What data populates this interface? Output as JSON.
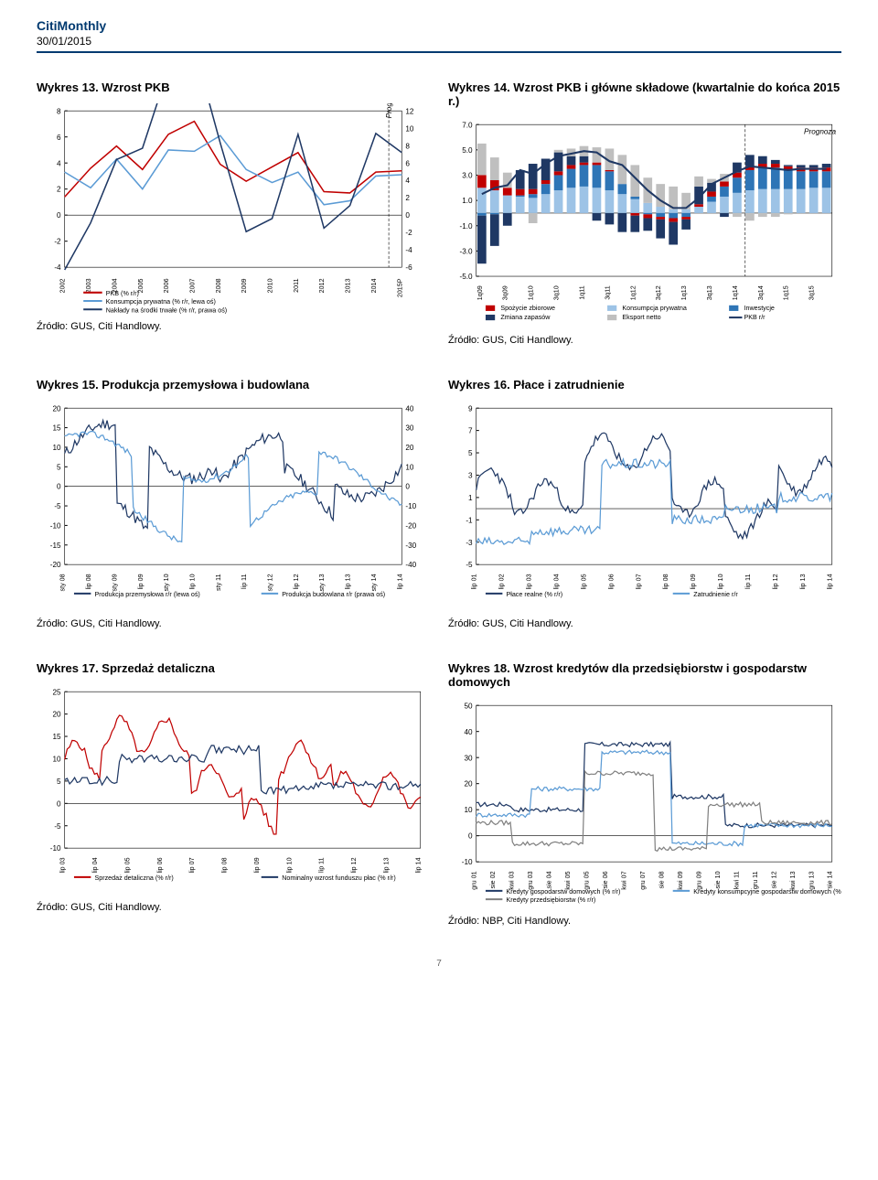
{
  "header": {
    "title": "CitiMonthly",
    "date": "30/01/2015"
  },
  "page_number": "7",
  "colors": {
    "citi_blue": "#003a70",
    "red": "#c00000",
    "navy": "#1f3864",
    "lightblue": "#9dc3e6",
    "skyblue": "#5b9bd5",
    "midblue": "#2e75b6",
    "grey": "#808080",
    "lightgrey": "#bfbfbf",
    "grid": "#cccccc"
  },
  "chart13": {
    "title": "Wykres 13. Wzrost PKB",
    "type": "line-dual-axis",
    "x_labels": [
      "2002",
      "2003",
      "2004",
      "2005",
      "2006",
      "2007",
      "2008",
      "2009",
      "2010",
      "2011",
      "2012",
      "2013",
      "2014",
      "2015P"
    ],
    "prognoza_label": "Prognoza",
    "left_ylim": [
      -4,
      8
    ],
    "left_ticks": [
      -4,
      -2,
      0,
      2,
      4,
      6,
      8
    ],
    "right_ylim": [
      -6,
      12
    ],
    "right_ticks": [
      -6,
      -4,
      -2,
      0,
      2,
      4,
      6,
      8,
      10,
      12
    ],
    "series": {
      "pkb": {
        "label": "PKB (% r/r)",
        "color": "#c00000",
        "values": [
          1.4,
          3.6,
          5.3,
          3.5,
          6.2,
          7.2,
          3.9,
          2.6,
          3.7,
          4.8,
          1.8,
          1.7,
          3.3,
          3.4
        ]
      },
      "kons": {
        "label": "Konsumpcja prywatna (% r/r, lewa oś)",
        "color": "#5b9bd5",
        "values": [
          3.3,
          2.1,
          4.3,
          2.0,
          5.0,
          4.9,
          6.1,
          3.5,
          2.5,
          3.3,
          0.8,
          1.1,
          3.0,
          3.1
        ]
      },
      "nak": {
        "label": "Nakłady na środki trwałe (% r/r, prawa oś)",
        "color": "#1f3864",
        "values": [
          -6.3,
          -0.9,
          6.4,
          7.7,
          16.8,
          19.2,
          8.3,
          -1.9,
          -0.4,
          9.3,
          -1.5,
          1.1,
          9.4,
          7.2
        ]
      }
    },
    "source": "Źródło: GUS, Citi Handlowy."
  },
  "chart14": {
    "title": "Wykres 14. Wzrost PKB i główne składowe (kwartalnie do końca 2015 r.)",
    "type": "stacked-bar-line",
    "prognoza_label": "Prognoza",
    "x_labels": [
      "1q09",
      "3q09",
      "1q10",
      "3q10",
      "1q11",
      "3q11",
      "1q12",
      "3q12",
      "1q13",
      "3q13",
      "1q14",
      "3q14",
      "1q15",
      "3q15"
    ],
    "ylim": [
      -5,
      7
    ],
    "yticks": [
      -5,
      -3,
      -1,
      1,
      3,
      5,
      7
    ],
    "series": {
      "spozycie": {
        "label": "Spożycie zbiorowe",
        "color": "#c00000"
      },
      "zmiana": {
        "label": "Zmiana zapasów",
        "color": "#1f3864"
      },
      "kons": {
        "label": "Konsumpcja prywatna",
        "color": "#9dc3e6"
      },
      "eksport": {
        "label": "Eksport netto",
        "color": "#bfbfbf"
      },
      "inwest": {
        "label": "Inwestycje",
        "color": "#2e75b6"
      },
      "pkb": {
        "label": "PKB r/r",
        "color": "#1f3864"
      }
    },
    "bars": [
      {
        "sp": 1.0,
        "zm": -3.8,
        "ko": 2.0,
        "ek": 2.5,
        "in": -0.2
      },
      {
        "sp": 0.8,
        "zm": -2.5,
        "ko": 1.8,
        "ek": 1.8,
        "in": -0.1
      },
      {
        "sp": 0.6,
        "zm": -1.0,
        "ko": 1.4,
        "ek": 1.2,
        "in": 0.0
      },
      {
        "sp": 0.5,
        "zm": 1.5,
        "ko": 1.3,
        "ek": 0.0,
        "in": 0.1
      },
      {
        "sp": 0.4,
        "zm": 2.0,
        "ko": 1.2,
        "ek": -0.8,
        "in": 0.3
      },
      {
        "sp": 0.3,
        "zm": 1.7,
        "ko": 1.5,
        "ek": 0.0,
        "in": 0.8
      },
      {
        "sp": 0.3,
        "zm": 1.5,
        "ko": 1.8,
        "ek": 0.2,
        "in": 1.2
      },
      {
        "sp": 0.3,
        "zm": 0.7,
        "ko": 2.0,
        "ek": 0.6,
        "in": 1.5
      },
      {
        "sp": 0.2,
        "zm": 0.5,
        "ko": 2.1,
        "ek": 0.8,
        "in": 1.7
      },
      {
        "sp": 0.2,
        "zm": -0.6,
        "ko": 2.0,
        "ek": 1.2,
        "in": 1.8
      },
      {
        "sp": 0.1,
        "zm": -0.9,
        "ko": 1.8,
        "ek": 1.7,
        "in": 1.5
      },
      {
        "sp": 0.0,
        "zm": -1.5,
        "ko": 1.5,
        "ek": 2.3,
        "in": 0.8
      },
      {
        "sp": -0.2,
        "zm": -1.3,
        "ko": 1.1,
        "ek": 2.5,
        "in": 0.2
      },
      {
        "sp": -0.3,
        "zm": -1.0,
        "ko": 0.8,
        "ek": 2.0,
        "in": -0.1
      },
      {
        "sp": -0.2,
        "zm": -1.5,
        "ko": 0.5,
        "ek": 1.8,
        "in": -0.3
      },
      {
        "sp": -0.3,
        "zm": -1.8,
        "ko": 0.3,
        "ek": 1.8,
        "in": -0.4
      },
      {
        "sp": -0.2,
        "zm": -0.8,
        "ko": 0.3,
        "ek": 1.3,
        "in": -0.3
      },
      {
        "sp": 0.2,
        "zm": 1.4,
        "ko": 0.5,
        "ek": 0.8,
        "in": 0.0
      },
      {
        "sp": 0.4,
        "zm": 0.7,
        "ko": 0.9,
        "ek": 0.3,
        "in": 0.4
      },
      {
        "sp": 0.4,
        "zm": -0.3,
        "ko": 1.3,
        "ek": 0.6,
        "in": 0.8
      },
      {
        "sp": 0.4,
        "zm": 0.8,
        "ko": 1.6,
        "ek": -0.3,
        "in": 1.2
      },
      {
        "sp": 0.3,
        "zm": 0.9,
        "ko": 1.8,
        "ek": -0.6,
        "in": 1.6
      },
      {
        "sp": 0.3,
        "zm": 0.6,
        "ko": 1.9,
        "ek": -0.3,
        "in": 1.7
      },
      {
        "sp": 0.3,
        "zm": 0.3,
        "ko": 1.9,
        "ek": -0.3,
        "in": 1.7
      },
      {
        "sp": 0.3,
        "zm": 0.1,
        "ko": 1.9,
        "ek": -0.1,
        "in": 1.5
      },
      {
        "sp": 0.3,
        "zm": 0.2,
        "ko": 1.9,
        "ek": 0.0,
        "in": 1.4
      },
      {
        "sp": 0.3,
        "zm": 0.2,
        "ko": 2.0,
        "ek": 0.0,
        "in": 1.3
      },
      {
        "sp": 0.3,
        "zm": 0.3,
        "ko": 2.0,
        "ek": 0.0,
        "in": 1.3
      }
    ],
    "pkb_line": [
      1.5,
      2.0,
      2.2,
      3.4,
      3.1,
      3.9,
      4.5,
      4.7,
      4.9,
      4.8,
      4.1,
      3.8,
      2.8,
      1.8,
      1.0,
      0.4,
      0.4,
      1.2,
      2.3,
      2.8,
      3.3,
      3.7,
      3.6,
      3.5,
      3.4,
      3.5,
      3.5,
      3.5
    ],
    "prognoza_from_index": 21,
    "source": "Źródło: GUS, Citi Handlowy."
  },
  "chart15": {
    "title": "Wykres 15. Produkcja przemysłowa i budowlana",
    "type": "line-dual-axis",
    "x_labels": [
      "sty 08",
      "lip 08",
      "sty 09",
      "lip 09",
      "sty 10",
      "lip 10",
      "sty 11",
      "lip 11",
      "sty 12",
      "lip 12",
      "sty 13",
      "lip 13",
      "sty 14",
      "lip 14"
    ],
    "left_ylim": [
      -20,
      20
    ],
    "left_ticks": [
      -20,
      -15,
      -10,
      -5,
      0,
      5,
      10,
      15,
      20
    ],
    "right_ylim": [
      -40,
      40
    ],
    "right_ticks": [
      -40,
      -30,
      -20,
      -10,
      0,
      10,
      20,
      30,
      40
    ],
    "series": {
      "przem": {
        "label": "Produkcja przemysłowa r/r (lewa oś)",
        "color": "#1f3864"
      },
      "bud": {
        "label": "Produkcja budowlana r/r (prawa oś)",
        "color": "#5b9bd5"
      }
    },
    "source": "Źródło: GUS, Citi Handlowy."
  },
  "chart16": {
    "title": "Wykres 16. Płace i zatrudnienie",
    "type": "line",
    "x_labels": [
      "lip 01",
      "lip 02",
      "lip 03",
      "lip 04",
      "lip 05",
      "lip 06",
      "lip 07",
      "lip 08",
      "lip 09",
      "lip 10",
      "lip 11",
      "lip 12",
      "lip 13",
      "lip 14"
    ],
    "ylim": [
      -5,
      9
    ],
    "yticks": [
      -5,
      -3,
      -1,
      1,
      3,
      5,
      7,
      9
    ],
    "series": {
      "place": {
        "label": "Płace realne (% r/r)",
        "color": "#1f3864"
      },
      "zatr": {
        "label": "Zatrudnienie r/r",
        "color": "#5b9bd5"
      }
    },
    "source": "Źródło: GUS, Citi Handlowy."
  },
  "chart17": {
    "title": "Wykres 17. Sprzedaż detaliczna",
    "type": "line",
    "x_labels": [
      "lip 03",
      "lip 04",
      "lip 05",
      "lip 06",
      "lip 07",
      "lip 08",
      "lip 09",
      "lip 10",
      "lip 11",
      "lip 12",
      "lip 13",
      "lip 14"
    ],
    "ylim": [
      -10,
      25
    ],
    "yticks": [
      -10,
      -5,
      0,
      5,
      10,
      15,
      20,
      25
    ],
    "series": {
      "sprz": {
        "label": "Sprzedaż detaliczna (% r/r)",
        "color": "#c00000"
      },
      "nom": {
        "label": "Nominalny wzrost funduszu płac (% r/r)",
        "color": "#1f3864"
      }
    },
    "source": "Źródło: GUS, Citi Handlowy."
  },
  "chart18": {
    "title": "Wykres 18. Wzrost kredytów dla przedsiębiorstw i gospodarstw domowych",
    "type": "line",
    "x_labels": [
      "gru 01",
      "sie 02",
      "kwi 03",
      "gru 03",
      "sie 04",
      "kwi 05",
      "gru 05",
      "sie 06",
      "kwi 07",
      "gru 07",
      "sie 08",
      "kwi 09",
      "gru 09",
      "sie 10",
      "kwi 11",
      "gru 11",
      "sie 12",
      "kwi 13",
      "gru 13",
      "sie 14"
    ],
    "ylim": [
      -10,
      50
    ],
    "yticks": [
      -10,
      0,
      10,
      20,
      30,
      40,
      50
    ],
    "series": {
      "gosp": {
        "label": "Kredyty gospodarstw domowych (% r/r)",
        "color": "#1f3864"
      },
      "kons": {
        "label": "Kredyty konsumpcyjne gospodarstw domowych (% r/r)",
        "color": "#5b9bd5"
      },
      "przed": {
        "label": "Kredyty przedsiębiorstw (% r/r)",
        "color": "#808080"
      }
    },
    "source": "Źródło: NBP, Citi Handlowy."
  }
}
